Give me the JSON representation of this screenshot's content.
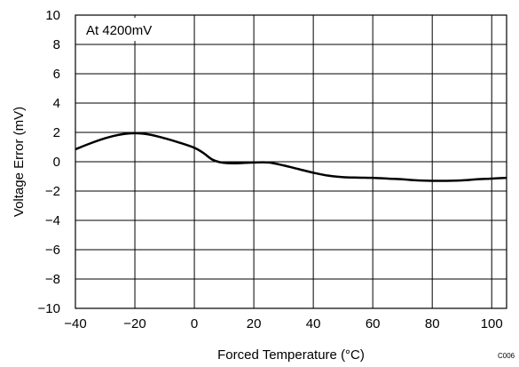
{
  "chart_data": {
    "type": "line",
    "annotation": "At 4200mV",
    "xlabel": "Forced Temperature (°C)",
    "ylabel": "Voltage Error (mV)",
    "figure_id": "C006",
    "xlim": [
      -40,
      105
    ],
    "ylim": [
      -10,
      10
    ],
    "xticks": [
      -40,
      -20,
      0,
      20,
      40,
      60,
      80,
      100
    ],
    "yticks": [
      -10,
      -8,
      -6,
      -4,
      -2,
      0,
      2,
      4,
      6,
      8,
      10
    ],
    "xtick_labels": [
      "−40",
      "−20",
      "0",
      "20",
      "40",
      "60",
      "80",
      "100"
    ],
    "ytick_labels": [
      "−10",
      "−8",
      "−6",
      "−4",
      "−2",
      "0",
      "2",
      "4",
      "6",
      "8",
      "10"
    ],
    "grid": true,
    "line_color": "#000000",
    "series": [
      {
        "x": [
          -40,
          -35,
          -30,
          -25,
          -20,
          -15,
          -10,
          -5,
          0,
          3,
          6,
          9,
          12,
          15,
          20,
          25,
          30,
          35,
          40,
          45,
          50,
          55,
          60,
          65,
          70,
          75,
          80,
          85,
          90,
          95,
          100,
          105
        ],
        "values": [
          0.85,
          1.25,
          1.6,
          1.85,
          1.95,
          1.85,
          1.6,
          1.3,
          0.95,
          0.6,
          0.15,
          -0.05,
          -0.1,
          -0.1,
          -0.05,
          -0.05,
          -0.25,
          -0.5,
          -0.75,
          -0.95,
          -1.05,
          -1.08,
          -1.1,
          -1.15,
          -1.2,
          -1.27,
          -1.3,
          -1.3,
          -1.27,
          -1.2,
          -1.15,
          -1.1
        ]
      }
    ]
  }
}
